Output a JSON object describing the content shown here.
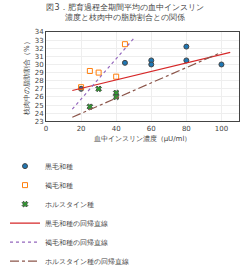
{
  "chart_data": {
    "type": "scatter",
    "title": "図3．肥育過程全期間平均の血中インスリン",
    "subtitle": "濃度と枝肉中の脂肪割合との関係",
    "xlabel": "血中インスリン濃度（μU/ml）",
    "ylabel": "枝肉中の脂肪割合（%）",
    "xlim": [
      0,
      110
    ],
    "ylim": [
      23,
      34
    ],
    "xticks": [
      0,
      20,
      40,
      60,
      80,
      100
    ],
    "yticks": [
      23,
      24,
      25,
      26,
      27,
      28,
      29,
      30,
      31,
      32,
      33,
      34
    ],
    "series": [
      {
        "name": "黒毛和種",
        "type": "scatter",
        "marker": "circle",
        "x": [
          20,
          45,
          60,
          60,
          80,
          80,
          100
        ],
        "values": [
          27.0,
          30.2,
          30.5,
          30.0,
          32.2,
          30.5,
          30.0
        ]
      },
      {
        "name": "褐毛和種",
        "type": "scatter",
        "marker": "open_square",
        "x": [
          20,
          25,
          30,
          40,
          45
        ],
        "values": [
          27.2,
          29.2,
          29.0,
          28.5,
          32.5
        ]
      },
      {
        "name": "ホルスタイン種",
        "type": "scatter",
        "marker": "x",
        "x": [
          25,
          30,
          40,
          40
        ],
        "values": [
          24.8,
          27.0,
          26.5,
          26.0
        ]
      },
      {
        "name": "黒毛和種の回帰直線",
        "type": "line",
        "line_style": "solid",
        "x": [
          15,
          105
        ],
        "values": [
          26.8,
          31.5
        ]
      },
      {
        "name": "褐毛和種の回帰直線",
        "type": "line",
        "line_style": "dotted",
        "x": [
          15,
          50
        ],
        "values": [
          24.5,
          33.2
        ]
      },
      {
        "name": "ホルスタイン種の回帰直線",
        "type": "line",
        "line_style": "dashdot",
        "x": [
          15,
          100
        ],
        "values": [
          23.5,
          31.5
        ]
      }
    ]
  }
}
